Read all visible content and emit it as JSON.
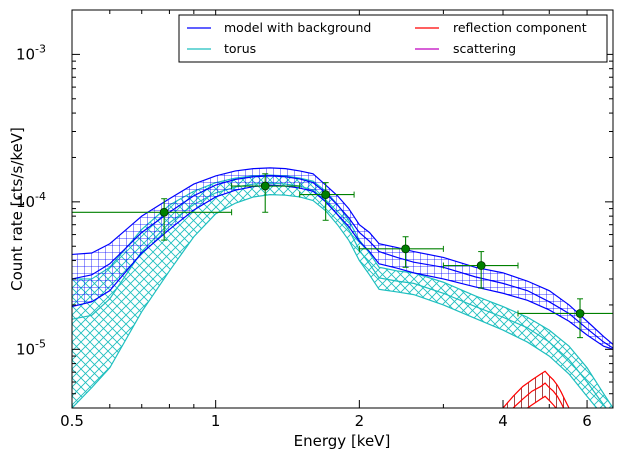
{
  "chart_data": {
    "type": "line",
    "xlabel": "Energy [keV]",
    "ylabel": "Count rate [cts/s/keV]",
    "x_scale": "log",
    "y_scale": "log",
    "xlim": [
      0.5,
      6.8
    ],
    "ylim": [
      4e-06,
      0.002
    ],
    "grid": false,
    "legend_location": "top-right",
    "x_ticks": [
      {
        "value": 0.5,
        "label": "0.5"
      },
      {
        "value": 1,
        "label": "1"
      },
      {
        "value": 2,
        "label": "2"
      },
      {
        "value": 4,
        "label": "4"
      },
      {
        "value": 6,
        "label": "6"
      }
    ],
    "y_ticks": [
      {
        "value": 1e-05,
        "base": "10",
        "exp": "-5"
      },
      {
        "value": 0.0001,
        "base": "10",
        "exp": "-4"
      },
      {
        "value": 0.001,
        "base": "10",
        "exp": "-3"
      }
    ],
    "colors": {
      "model": "#0000ff",
      "torus": "#1fbfbf",
      "reflection": "#ff0000",
      "scattering": "#bf00bf",
      "data": "#008000"
    },
    "series": [
      {
        "name": "model with background",
        "color": "#0000ff",
        "x": [
          0.5,
          0.55,
          0.6,
          0.7,
          0.8,
          0.9,
          1.0,
          1.1,
          1.2,
          1.3,
          1.4,
          1.5,
          1.6,
          1.7,
          1.8,
          1.9,
          2.0,
          2.1,
          2.2,
          2.4,
          2.6,
          3.0,
          3.5,
          4.0,
          4.5,
          5.0,
          5.5,
          6.0,
          6.5,
          6.8
        ],
        "upper": [
          4.4e-05,
          4.5e-05,
          5.2e-05,
          8e-05,
          0.000105,
          0.000132,
          0.00015,
          0.000162,
          0.000168,
          0.00017,
          0.000168,
          0.000162,
          0.000155,
          0.00013,
          0.00011,
          9e-05,
          7e-05,
          6.2e-05,
          5.2e-05,
          4.9e-05,
          4.6e-05,
          4.2e-05,
          3.6e-05,
          3.3e-05,
          2.9e-05,
          2.5e-05,
          2e-05,
          1.55e-05,
          1.22e-05,
          1.08e-05
        ],
        "mid": [
          3e-05,
          3.2e-05,
          3.8e-05,
          6.2e-05,
          8.5e-05,
          0.00011,
          0.00013,
          0.000142,
          0.000148,
          0.00015,
          0.000148,
          0.000143,
          0.000135,
          0.000115,
          9.5e-05,
          7.8e-05,
          6.2e-05,
          5.4e-05,
          4.6e-05,
          4.2e-05,
          3.9e-05,
          3.6e-05,
          3.1e-05,
          2.8e-05,
          2.5e-05,
          2.1e-05,
          1.75e-05,
          1.38e-05,
          1.12e-05,
          1.02e-05
        ],
        "lower": [
          1.95e-05,
          2.1e-05,
          2.5e-05,
          4.5e-05,
          6.5e-05,
          8.8e-05,
          0.000108,
          0.00012,
          0.000127,
          0.00013,
          0.000128,
          0.000124,
          0.000118,
          0.0001,
          8.2e-05,
          6.8e-05,
          5.4e-05,
          4.6e-05,
          3.8e-05,
          3.55e-05,
          3.3e-05,
          3e-05,
          2.65e-05,
          2.4e-05,
          2.15e-05,
          1.85e-05,
          1.55e-05,
          1.25e-05,
          1.05e-05,
          1e-05
        ]
      },
      {
        "name": "torus",
        "color": "#1fbfbf",
        "x": [
          0.5,
          0.55,
          0.6,
          0.7,
          0.8,
          0.9,
          1.0,
          1.1,
          1.2,
          1.3,
          1.4,
          1.5,
          1.6,
          1.7,
          1.8,
          1.9,
          2.0,
          2.1,
          2.2,
          2.4,
          2.6,
          3.0,
          3.5,
          4.0,
          4.5,
          5.0,
          5.5,
          6.0,
          6.5,
          6.8
        ],
        "upper": [
          3e-05,
          3e-05,
          3.6e-05,
          6.5e-05,
          9.5e-05,
          0.000118,
          0.000135,
          0.000145,
          0.00015,
          0.000152,
          0.00015,
          0.000145,
          0.000138,
          0.000118,
          9.6e-05,
          7.5e-05,
          5.5e-05,
          4.5e-05,
          3.6e-05,
          3.4e-05,
          3.3e-05,
          2.85e-05,
          2.3e-05,
          1.95e-05,
          1.65e-05,
          1.35e-05,
          1.05e-05,
          7.5e-06,
          5e-06,
          4e-06
        ],
        "mid": [
          1.6e-05,
          1.7e-05,
          2.2e-05,
          4.6e-05,
          7.2e-05,
          9.6e-05,
          0.000115,
          0.000126,
          0.000132,
          0.000134,
          0.000132,
          0.000128,
          0.00012,
          0.000102,
          8.2e-05,
          6.5e-05,
          4.7e-05,
          3.8e-05,
          3.05e-05,
          2.9e-05,
          2.8e-05,
          2.4e-05,
          1.95e-05,
          1.65e-05,
          1.4e-05,
          1.12e-05,
          8.5e-06,
          6e-06,
          4.2e-06,
          3.5e-06
        ],
        "lower": [
          4e-06,
          5.5e-06,
          7.5e-06,
          1.8e-05,
          3.4e-05,
          5.8e-05,
          8.3e-05,
          9.8e-05,
          0.000108,
          0.000112,
          0.000111,
          0.000108,
          0.000102,
          8.7e-05,
          7e-05,
          5.5e-05,
          4e-05,
          3.2e-05,
          2.55e-05,
          2.45e-05,
          2.35e-05,
          2e-05,
          1.62e-05,
          1.35e-05,
          1.12e-05,
          9e-06,
          6.8e-06,
          4.8e-06,
          3.5e-06,
          3e-06
        ]
      },
      {
        "name": "reflection component",
        "color": "#ff0000",
        "x": [
          4.0,
          4.2,
          4.4,
          4.6,
          4.8,
          4.9,
          5.0,
          5.1,
          5.2,
          5.3,
          5.4,
          5.5
        ],
        "upper": [
          4e-06,
          4.8e-06,
          5.6e-06,
          6.2e-06,
          6.8e-06,
          7.1e-06,
          6.6e-06,
          6.2e-06,
          5.7e-06,
          5.1e-06,
          4.5e-06,
          4e-06
        ],
        "mid": [
          3.5e-06,
          4e-06,
          4.6e-06,
          5.2e-06,
          5.6e-06,
          5.9e-06,
          5.5e-06,
          5.2e-06,
          4.8e-06,
          4.3e-06,
          3.8e-06,
          3.4e-06
        ],
        "lower": [
          3e-06,
          3.4e-06,
          3.8e-06,
          4.2e-06,
          4.6e-06,
          4.8e-06,
          4.5e-06,
          4.2e-06,
          3.9e-06,
          3.5e-06,
          3.1e-06,
          2.8e-06
        ]
      },
      {
        "name": "scattering",
        "color": "#bf00bf",
        "x": [],
        "upper": [],
        "mid": [],
        "lower": []
      }
    ],
    "data_points": [
      {
        "x": 0.78,
        "y": 8.5e-05,
        "xerr": [
          0.5,
          1.08
        ],
        "yerr": [
          5.5e-05,
          0.000105
        ]
      },
      {
        "x": 1.27,
        "y": 0.000128,
        "xerr": [
          1.08,
          1.5
        ],
        "yerr": [
          8.5e-05,
          0.000155
        ]
      },
      {
        "x": 1.7,
        "y": 0.000112,
        "xerr": [
          1.5,
          1.95
        ],
        "yerr": [
          7.5e-05,
          0.000135
        ]
      },
      {
        "x": 2.5,
        "y": 4.8e-05,
        "xerr": [
          2.0,
          3.0
        ],
        "yerr": [
          3.6e-05,
          5.8e-05
        ]
      },
      {
        "x": 3.6,
        "y": 3.7e-05,
        "xerr": [
          3.0,
          4.3
        ],
        "yerr": [
          2.6e-05,
          4.6e-05
        ]
      },
      {
        "x": 5.8,
        "y": 1.75e-05,
        "xerr": [
          4.3,
          6.8
        ],
        "yerr": [
          1.2e-05,
          2.2e-05
        ]
      }
    ]
  }
}
